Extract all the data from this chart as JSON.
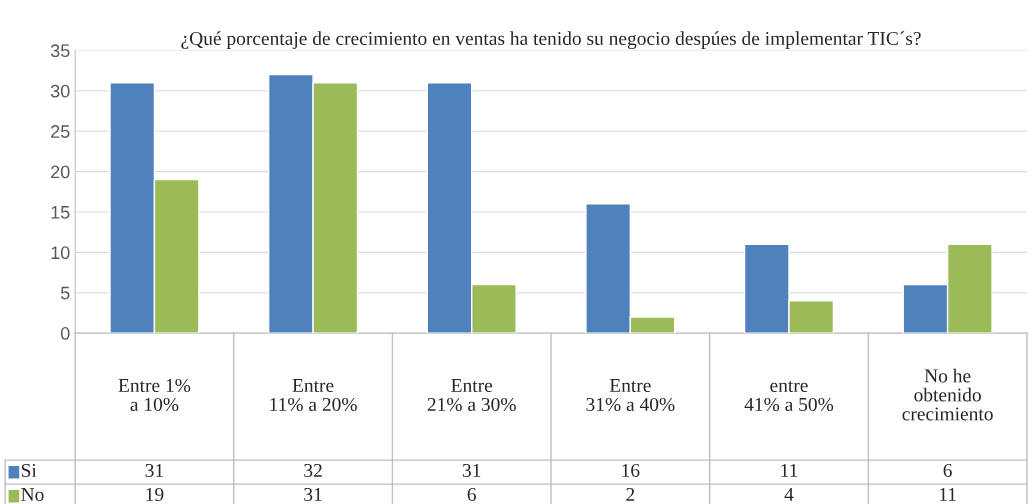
{
  "chart_data": {
    "type": "bar",
    "title": "¿Qué porcentaje de crecimiento en ventas ha tenido su negocio despúes de implementar TIC´s?",
    "categories": [
      "Entre 1%\na 10%",
      "Entre\n11% a 20%",
      "Entre\n21% a 30%",
      "Entre\n31% a 40%",
      "entre\n41% a 50%",
      "No he\nobtenido\ncrecimiento"
    ],
    "series": [
      {
        "name": "Si",
        "color": "#4f81bd",
        "values": [
          31,
          32,
          31,
          16,
          11,
          6
        ]
      },
      {
        "name": "No",
        "color": "#9bbb59",
        "values": [
          19,
          31,
          6,
          2,
          4,
          11
        ]
      }
    ],
    "ylim": [
      0,
      35
    ],
    "yticks": [
      0,
      5,
      10,
      15,
      20,
      25,
      30,
      35
    ],
    "grid": "y",
    "legend": "bottom left",
    "data_labels": true
  }
}
